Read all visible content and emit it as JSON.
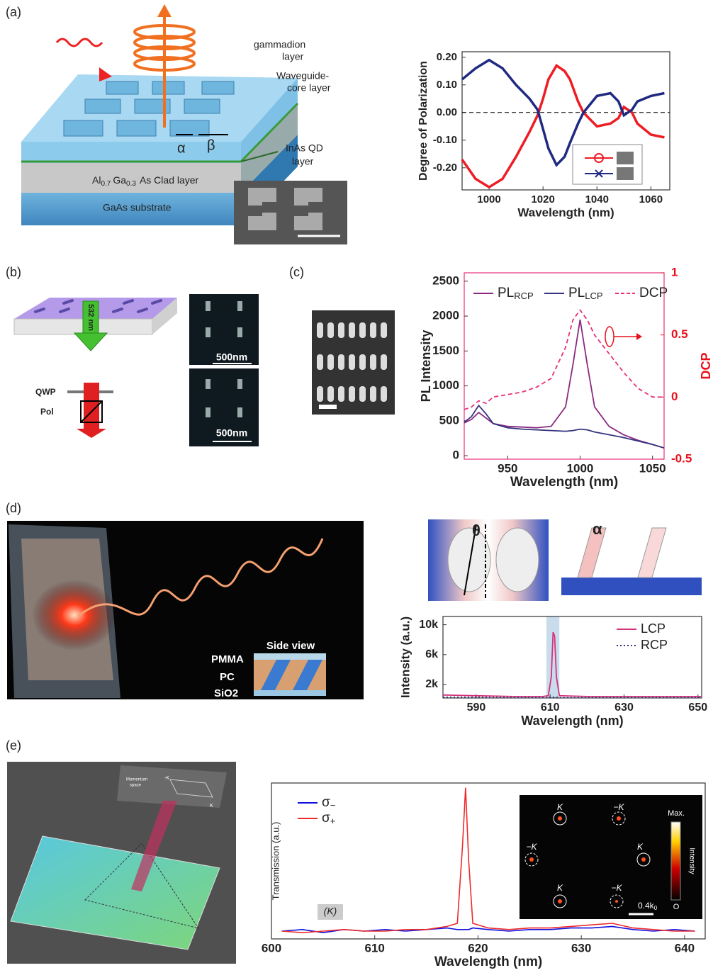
{
  "panels": {
    "labels": [
      "(a)",
      "(b)",
      "(c)",
      "(d)",
      "(e)"
    ],
    "a": {
      "gammadion": [
        "gammadion",
        "layer"
      ],
      "waveguide": [
        "Waveguide-",
        "core layer"
      ],
      "alpha": "α",
      "beta": "β",
      "qd": [
        "InAs QD",
        "layer"
      ],
      "clad": [
        "Al",
        "0.7",
        "Ga",
        "0.3",
        "As  Clad layer"
      ],
      "substrate": "GaAs  substrate"
    },
    "b": {
      "laser": "532 nm",
      "qwp": "QWP",
      "pol": "Pol",
      "scale": [
        "500nm",
        "500nm"
      ]
    },
    "d": {
      "theta": "θ",
      "alpha": "α",
      "side_view": "Side view",
      "layers": [
        "PMMA",
        "PC",
        "SiO2"
      ]
    },
    "e": {
      "momentum": [
        "Momentum",
        "space"
      ],
      "scheme_k": [
        "K",
        "-K"
      ],
      "inset_k": [
        "K",
        "−K",
        "−K",
        "K",
        "K",
        "−K"
      ],
      "colorbar": [
        "Max.",
        "Intensity",
        "O"
      ],
      "scale": [
        "0.4k",
        "0"
      ]
    }
  },
  "chart_data": [
    {
      "type": "line",
      "xlabel": "Wavelength (nm)",
      "ylabel": "Degree of Polarization",
      "x": [
        990,
        995,
        1000,
        1005,
        1010,
        1015,
        1018,
        1020,
        1022,
        1025,
        1028,
        1030,
        1033,
        1035,
        1040,
        1045,
        1048,
        1050,
        1053,
        1055,
        1060,
        1065
      ],
      "series": [
        {
          "color": "#ee1c25",
          "values": [
            -0.17,
            -0.24,
            -0.27,
            -0.24,
            -0.16,
            -0.07,
            -0.01,
            0.05,
            0.12,
            0.17,
            0.15,
            0.12,
            0.04,
            0.0,
            -0.05,
            -0.04,
            -0.02,
            0.02,
            0.0,
            -0.04,
            -0.08,
            -0.09
          ]
        },
        {
          "color": "#1f2a80",
          "values": [
            0.12,
            0.16,
            0.19,
            0.16,
            0.1,
            0.05,
            0.01,
            -0.06,
            -0.13,
            -0.19,
            -0.16,
            -0.11,
            -0.04,
            0.0,
            0.06,
            0.07,
            0.04,
            -0.01,
            0.01,
            0.04,
            0.06,
            0.07
          ]
        }
      ],
      "xlim": [
        990,
        1067
      ],
      "xticks": [
        1000,
        1020,
        1040,
        1060
      ],
      "ylim": [
        -0.28,
        0.22
      ],
      "yticks": [
        {
          "value": -0.2,
          "label": "-0.20"
        },
        {
          "value": -0.1,
          "label": "-0.10"
        },
        {
          "value": 0,
          "label": "0.00"
        },
        {
          "value": 0.1,
          "label": "0.10"
        },
        {
          "value": 0.2,
          "label": "0.20"
        }
      ],
      "zero_line": true
    },
    {
      "type": "line",
      "xlabel": "Wavelength (nm)",
      "ylabel": "PL Intensity",
      "y2label": "DCP",
      "y2_color": "#e8101a",
      "x": [
        920,
        925,
        930,
        935,
        940,
        950,
        960,
        970,
        980,
        990,
        995,
        1000,
        1005,
        1010,
        1020,
        1030,
        1040,
        1050,
        1058
      ],
      "series": [
        {
          "name": "PL",
          "subscript": "RCP",
          "color": "#8a2a80",
          "values": [
            470,
            520,
            620,
            540,
            460,
            420,
            410,
            400,
            420,
            700,
            1300,
            1950,
            1300,
            700,
            420,
            300,
            220,
            160,
            110
          ]
        },
        {
          "name": "PL",
          "subscript": "LCP",
          "color": "#34347f",
          "values": [
            480,
            560,
            720,
            600,
            460,
            400,
            380,
            370,
            360,
            350,
            360,
            380,
            370,
            340,
            300,
            260,
            210,
            160,
            110
          ]
        },
        {
          "name": "DCP",
          "color": "#e8307a",
          "dashed": true,
          "axis": "y2",
          "values": [
            -0.1,
            -0.08,
            -0.03,
            -0.05,
            0.0,
            0.02,
            0.04,
            0.08,
            0.15,
            0.4,
            0.62,
            0.7,
            0.62,
            0.5,
            0.35,
            0.2,
            0.07,
            0.0,
            0.0
          ]
        }
      ],
      "xlim": [
        920,
        1058
      ],
      "xticks": [
        950,
        1000,
        1050
      ],
      "ylim": [
        -50,
        2620
      ],
      "yticks": [
        0,
        500,
        1000,
        1500,
        2000,
        2500
      ],
      "y2lim": [
        -0.5,
        1
      ],
      "y2ticks": [
        -0.5,
        0,
        0.5,
        1
      ]
    },
    {
      "type": "line",
      "xlabel": "Wavelength (nm)",
      "ylabel": "Intensity (a.u.)",
      "x": [
        581,
        590,
        600,
        608,
        609.5,
        610.3,
        610.8,
        611.2,
        611.7,
        612.5,
        620,
        630,
        640,
        651
      ],
      "series": [
        {
          "name": "LCP",
          "color": "#d4327a",
          "values": [
            600,
            500,
            400,
            400,
            500,
            3000,
            9000,
            8500,
            3000,
            500,
            400,
            400,
            400,
            400
          ]
        },
        {
          "name": "RCP",
          "color": "#34347f",
          "dotted": true,
          "values": [
            300,
            300,
            250,
            250,
            250,
            300,
            300,
            300,
            300,
            250,
            250,
            250,
            250,
            250
          ]
        }
      ],
      "xlim": [
        581,
        651
      ],
      "xticks": [
        590,
        610,
        630,
        650
      ],
      "ylim": [
        200,
        11100
      ],
      "yticks": [
        {
          "value": 2000,
          "label": "2k"
        },
        {
          "value": 6000,
          "label": "6k"
        },
        {
          "value": 10000,
          "label": "10k"
        }
      ],
      "highlight": [
        609,
        612.5
      ]
    },
    {
      "type": "line",
      "xlabel": "Wavelength (nm)",
      "ylabel": "Transmission (a.u.)",
      "annotation": "(K)",
      "x": [
        601,
        603,
        605,
        607,
        609,
        611,
        613,
        615,
        617,
        618,
        618.5,
        618.8,
        619.1,
        619.5,
        621,
        623,
        625,
        627,
        629,
        631,
        633,
        635,
        637,
        639,
        641
      ],
      "series": [
        {
          "name": "σ",
          "subscript": "−",
          "color": "#1010e0",
          "values": [
            0.05,
            0.06,
            0.04,
            0.06,
            0.05,
            0.06,
            0.05,
            0.06,
            0.07,
            0.06,
            0.06,
            0.06,
            0.06,
            0.07,
            0.06,
            0.05,
            0.06,
            0.06,
            0.07,
            0.07,
            0.08,
            0.06,
            0.05,
            0.06,
            0.05
          ]
        },
        {
          "name": "σ",
          "subscript": "+",
          "color": "#ee2a2a",
          "values": [
            0.05,
            0.04,
            0.05,
            0.06,
            0.05,
            0.05,
            0.06,
            0.06,
            0.08,
            0.1,
            0.6,
            0.97,
            0.5,
            0.1,
            0.07,
            0.06,
            0.07,
            0.07,
            0.08,
            0.09,
            0.1,
            0.07,
            0.06,
            0.05,
            0.05
          ]
        }
      ],
      "xlim": [
        600,
        642
      ],
      "xticks": [
        600,
        610,
        620,
        630,
        640
      ],
      "ylim": [
        0,
        1
      ]
    }
  ]
}
